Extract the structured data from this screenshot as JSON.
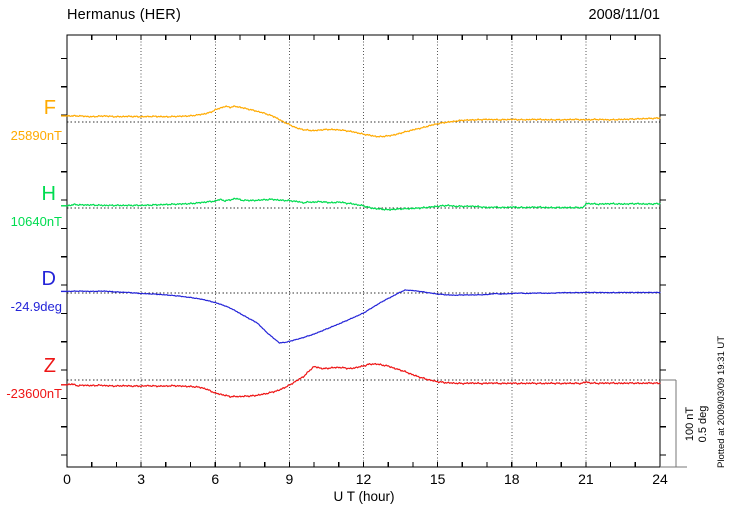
{
  "header": {
    "title": "Hermanus (HER)",
    "date": "2008/11/01"
  },
  "axis": {
    "label": "U T (hour)",
    "ticks": [
      0,
      3,
      6,
      9,
      12,
      15,
      18,
      21,
      24
    ],
    "range": [
      0,
      24
    ]
  },
  "scale": {
    "labels": [
      "100 nT",
      "0.5 deg"
    ]
  },
  "footer": {
    "note": "Plotted at 2009/03/09 19:31 UT"
  },
  "chart_data": {
    "type": "line",
    "title": "Hermanus (HER) magnetogram 2008/11/01",
    "xlabel": "U T (hour)",
    "x_unit": "hour",
    "x_range": [
      0,
      24
    ],
    "grid": "dotted 3-hour verticals, dotted zero-baseline per trace",
    "scale_bar": {
      "nT_per_division": 100,
      "deg_per_division": 0.5
    },
    "series": [
      {
        "id": "F",
        "label": "F",
        "reference": "25890nT",
        "unit": "nT",
        "color": "#FFAA00",
        "points": [
          [
            0,
            7
          ],
          [
            0.5,
            7
          ],
          [
            1,
            6
          ],
          [
            1.5,
            7
          ],
          [
            2,
            6
          ],
          [
            2.5,
            6.5
          ],
          [
            3,
            6
          ],
          [
            3.5,
            6.5
          ],
          [
            4,
            6
          ],
          [
            4.5,
            6.5
          ],
          [
            5,
            7
          ],
          [
            5.5,
            9
          ],
          [
            5.8,
            11
          ],
          [
            6,
            14
          ],
          [
            6.2,
            16
          ],
          [
            6.4,
            18
          ],
          [
            6.6,
            17
          ],
          [
            6.8,
            18
          ],
          [
            7,
            17
          ],
          [
            7.3,
            15
          ],
          [
            7.6,
            13
          ],
          [
            8,
            10
          ],
          [
            8.4,
            6
          ],
          [
            8.7,
            1
          ],
          [
            9,
            -3
          ],
          [
            9.3,
            -7
          ],
          [
            9.6,
            -9
          ],
          [
            10,
            -10
          ],
          [
            10.3,
            -9
          ],
          [
            10.6,
            -8.5
          ],
          [
            11,
            -9
          ],
          [
            11.3,
            -10
          ],
          [
            11.6,
            -11.5
          ],
          [
            12,
            -14
          ],
          [
            12.3,
            -15.5
          ],
          [
            12.6,
            -17
          ],
          [
            13,
            -16
          ],
          [
            13.3,
            -14.5
          ],
          [
            13.6,
            -12
          ],
          [
            14,
            -9
          ],
          [
            14.4,
            -6.5
          ],
          [
            14.7,
            -4
          ],
          [
            15,
            -2
          ],
          [
            15.3,
            -0.5
          ],
          [
            15.6,
            0.5
          ],
          [
            16,
            2
          ],
          [
            16.5,
            2.5
          ],
          [
            17,
            3
          ],
          [
            17.5,
            2.5
          ],
          [
            18,
            3
          ],
          [
            18.5,
            2.5
          ],
          [
            19,
            3
          ],
          [
            19.5,
            2.5
          ],
          [
            20,
            2.5
          ],
          [
            20.5,
            3
          ],
          [
            21,
            2.5
          ],
          [
            21.5,
            3
          ],
          [
            22,
            2.5
          ],
          [
            22.5,
            3
          ],
          [
            23,
            3.5
          ],
          [
            23.5,
            4
          ],
          [
            24,
            4.5
          ]
        ]
      },
      {
        "id": "H",
        "label": "H",
        "reference": "10640nT",
        "unit": "nT",
        "color": "#00DC50",
        "points": [
          [
            0,
            2.5
          ],
          [
            0.3,
            4
          ],
          [
            0.6,
            3.5
          ],
          [
            1,
            3.5
          ],
          [
            1.5,
            3
          ],
          [
            2,
            3
          ],
          [
            2.5,
            3
          ],
          [
            3,
            3
          ],
          [
            3.5,
            3.5
          ],
          [
            4,
            4
          ],
          [
            4.5,
            4.5
          ],
          [
            5,
            5
          ],
          [
            5.5,
            6.5
          ],
          [
            6,
            8
          ],
          [
            6.2,
            10
          ],
          [
            6.4,
            8
          ],
          [
            6.6,
            9.5
          ],
          [
            6.9,
            11
          ],
          [
            7.1,
            8.5
          ],
          [
            7.3,
            9
          ],
          [
            7.5,
            8.5
          ],
          [
            8,
            9.5
          ],
          [
            8.3,
            10
          ],
          [
            8.6,
            9
          ],
          [
            9,
            8.5
          ],
          [
            9.3,
            7.5
          ],
          [
            9.6,
            6
          ],
          [
            9.8,
            7
          ],
          [
            10,
            6.5
          ],
          [
            10.2,
            7.5
          ],
          [
            10.5,
            6.5
          ],
          [
            10.8,
            6
          ],
          [
            11,
            7
          ],
          [
            11.2,
            6
          ],
          [
            11.5,
            5
          ],
          [
            12,
            2.5
          ],
          [
            12.3,
            0
          ],
          [
            12.6,
            -1
          ],
          [
            13,
            -2
          ],
          [
            13.5,
            -1
          ],
          [
            14,
            -0.5
          ],
          [
            14.5,
            0.5
          ],
          [
            15,
            2
          ],
          [
            15.4,
            3
          ],
          [
            15.7,
            2
          ],
          [
            16,
            2
          ],
          [
            16.5,
            2
          ],
          [
            17,
            0.5
          ],
          [
            17.3,
            1
          ],
          [
            17.6,
            0.5
          ],
          [
            18,
            1
          ],
          [
            18.5,
            0.5
          ],
          [
            19,
            1
          ],
          [
            19.5,
            0.5
          ],
          [
            20,
            0.5
          ],
          [
            20.9,
            0.5
          ],
          [
            21,
            5
          ],
          [
            21.2,
            5
          ],
          [
            21.4,
            4.5
          ],
          [
            21.6,
            4.5
          ],
          [
            22,
            5
          ],
          [
            22.5,
            4.5
          ],
          [
            23,
            5
          ],
          [
            23.5,
            4.5
          ],
          [
            24,
            5
          ]
        ]
      },
      {
        "id": "D",
        "label": "D",
        "reference": "-24.9deg",
        "unit": "deg",
        "color": "#2424D8",
        "points": [
          [
            0,
            0.009
          ],
          [
            0.5,
            0.011
          ],
          [
            1,
            0.009
          ],
          [
            1.5,
            0.011
          ],
          [
            2,
            0.006
          ],
          [
            2.5,
            0.003
          ],
          [
            3,
            -0.003
          ],
          [
            3.5,
            -0.006
          ],
          [
            4,
            -0.011
          ],
          [
            4.5,
            -0.017
          ],
          [
            5,
            -0.026
          ],
          [
            5.5,
            -0.037
          ],
          [
            6,
            -0.055
          ],
          [
            6.3,
            -0.069
          ],
          [
            6.6,
            -0.086
          ],
          [
            6.9,
            -0.109
          ],
          [
            7.1,
            -0.126
          ],
          [
            7.4,
            -0.149
          ],
          [
            7.7,
            -0.172
          ],
          [
            8,
            -0.215
          ],
          [
            8.2,
            -0.241
          ],
          [
            8.4,
            -0.264
          ],
          [
            8.6,
            -0.287
          ],
          [
            8.9,
            -0.282
          ],
          [
            9.2,
            -0.27
          ],
          [
            9.5,
            -0.259
          ],
          [
            10,
            -0.236
          ],
          [
            10.5,
            -0.207
          ],
          [
            11,
            -0.178
          ],
          [
            11.5,
            -0.147
          ],
          [
            12,
            -0.115
          ],
          [
            12.4,
            -0.08
          ],
          [
            12.8,
            -0.046
          ],
          [
            13.2,
            -0.017
          ],
          [
            13.5,
            0.006
          ],
          [
            13.7,
            0.017
          ],
          [
            14,
            0.014
          ],
          [
            14.3,
            0.009
          ],
          [
            14.7,
            0
          ],
          [
            15,
            -0.006
          ],
          [
            15.3,
            -0.01
          ],
          [
            15.7,
            -0.013
          ],
          [
            16,
            -0.011
          ],
          [
            16.5,
            -0.011
          ],
          [
            17,
            -0.009
          ],
          [
            17.3,
            -0.003
          ],
          [
            17.6,
            -0.006
          ],
          [
            18,
            -0.003
          ],
          [
            18.3,
            0
          ],
          [
            18.6,
            -0.003
          ],
          [
            19,
            0
          ],
          [
            19.5,
            -0.002
          ],
          [
            20,
            0.002
          ],
          [
            20.5,
            0.002
          ],
          [
            21,
            0.003
          ],
          [
            21.5,
            0.003
          ],
          [
            22,
            0.002
          ],
          [
            22.5,
            0.003
          ],
          [
            23,
            0.003
          ],
          [
            23.5,
            0.003
          ],
          [
            24,
            0.003
          ]
        ]
      },
      {
        "id": "Z",
        "label": "Z",
        "reference": "-23600nT",
        "unit": "nT",
        "color": "#EE1515",
        "points": [
          [
            0,
            -5.5
          ],
          [
            0.2,
            -4.5
          ],
          [
            0.4,
            -6.5
          ],
          [
            0.7,
            -6
          ],
          [
            1,
            -6.5
          ],
          [
            1.3,
            -6
          ],
          [
            1.6,
            -6.5
          ],
          [
            2,
            -7
          ],
          [
            2.3,
            -6.5
          ],
          [
            2.6,
            -7
          ],
          [
            3,
            -7
          ],
          [
            3.3,
            -6.5
          ],
          [
            3.6,
            -7
          ],
          [
            4,
            -7
          ],
          [
            4.3,
            -6.5
          ],
          [
            4.6,
            -7
          ],
          [
            5,
            -7.5
          ],
          [
            5.3,
            -8
          ],
          [
            5.6,
            -10
          ],
          [
            6,
            -15
          ],
          [
            6.3,
            -17
          ],
          [
            6.6,
            -19
          ],
          [
            7,
            -19
          ],
          [
            7.3,
            -18.5
          ],
          [
            7.6,
            -18
          ],
          [
            8,
            -16
          ],
          [
            8.3,
            -14
          ],
          [
            8.6,
            -11.5
          ],
          [
            9,
            -6
          ],
          [
            9.2,
            -2.5
          ],
          [
            9.4,
            1
          ],
          [
            9.6,
            4.5
          ],
          [
            9.8,
            10.5
          ],
          [
            10,
            15.5
          ],
          [
            10.2,
            14
          ],
          [
            10.4,
            13
          ],
          [
            10.7,
            14
          ],
          [
            11,
            14.5
          ],
          [
            11.2,
            14
          ],
          [
            11.5,
            13
          ],
          [
            11.8,
            15
          ],
          [
            12,
            16
          ],
          [
            12.2,
            18
          ],
          [
            12.5,
            18.5
          ],
          [
            12.8,
            17
          ],
          [
            13,
            16
          ],
          [
            13.3,
            13
          ],
          [
            13.6,
            10.5
          ],
          [
            14,
            6
          ],
          [
            14.3,
            3
          ],
          [
            14.6,
            0.5
          ],
          [
            15,
            -2
          ],
          [
            15.3,
            -3
          ],
          [
            15.6,
            -3.5
          ],
          [
            16,
            -4
          ],
          [
            16.4,
            -3.5
          ],
          [
            16.8,
            -4
          ],
          [
            17.2,
            -3.5
          ],
          [
            17.6,
            -4
          ],
          [
            18,
            -3.7
          ],
          [
            18.4,
            -4
          ],
          [
            18.8,
            -3.7
          ],
          [
            19.2,
            -4
          ],
          [
            19.6,
            -3.7
          ],
          [
            20,
            -4
          ],
          [
            20.4,
            -3.7
          ],
          [
            20.8,
            -4
          ],
          [
            21,
            -2.3
          ],
          [
            21.2,
            -3.5
          ],
          [
            21.5,
            -3.8
          ],
          [
            22,
            -3.5
          ],
          [
            22.4,
            -3.8
          ],
          [
            22.8,
            -3.5
          ],
          [
            23.2,
            -3.8
          ],
          [
            23.6,
            -3.5
          ],
          [
            24,
            -3.8
          ]
        ]
      }
    ]
  }
}
